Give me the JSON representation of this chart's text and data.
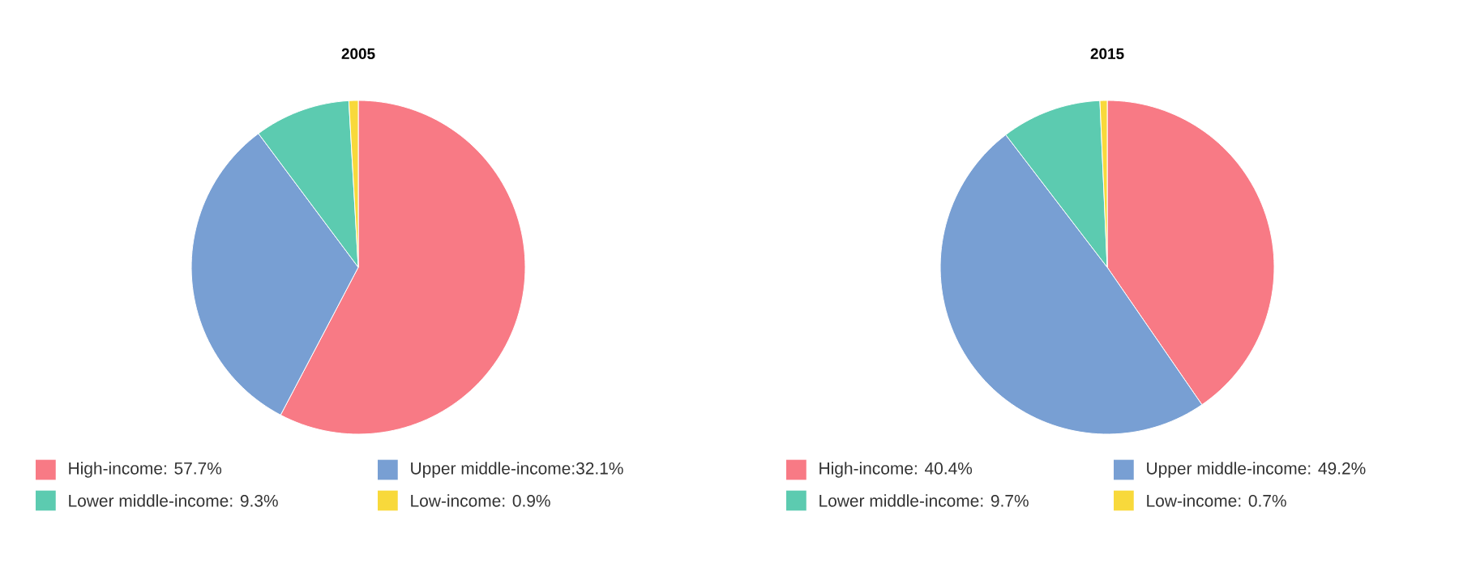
{
  "chart_data": [
    {
      "type": "pie",
      "title": "2005",
      "categories": [
        "High-income: 57.7%",
        "Upper middle-income:32.1%",
        "Lower middle-income: 9.3%",
        "Low-income: 0.9%"
      ],
      "values": [
        57.7,
        32.1,
        9.3,
        0.9
      ],
      "colors": [
        "#f87a85",
        "#789fd3",
        "#5ccbb0",
        "#f8d93b"
      ],
      "legend": "bottom"
    },
    {
      "type": "pie",
      "title": "2015",
      "categories": [
        "High-income: 40.4%",
        "Upper middle-income: 49.2%",
        "Lower middle-income: 9.7%",
        "Low-income: 0.7%"
      ],
      "values": [
        40.4,
        49.2,
        9.7,
        0.7
      ],
      "colors": [
        "#f87a85",
        "#789fd3",
        "#5ccbb0",
        "#f8d93b"
      ],
      "legend": "bottom"
    }
  ]
}
